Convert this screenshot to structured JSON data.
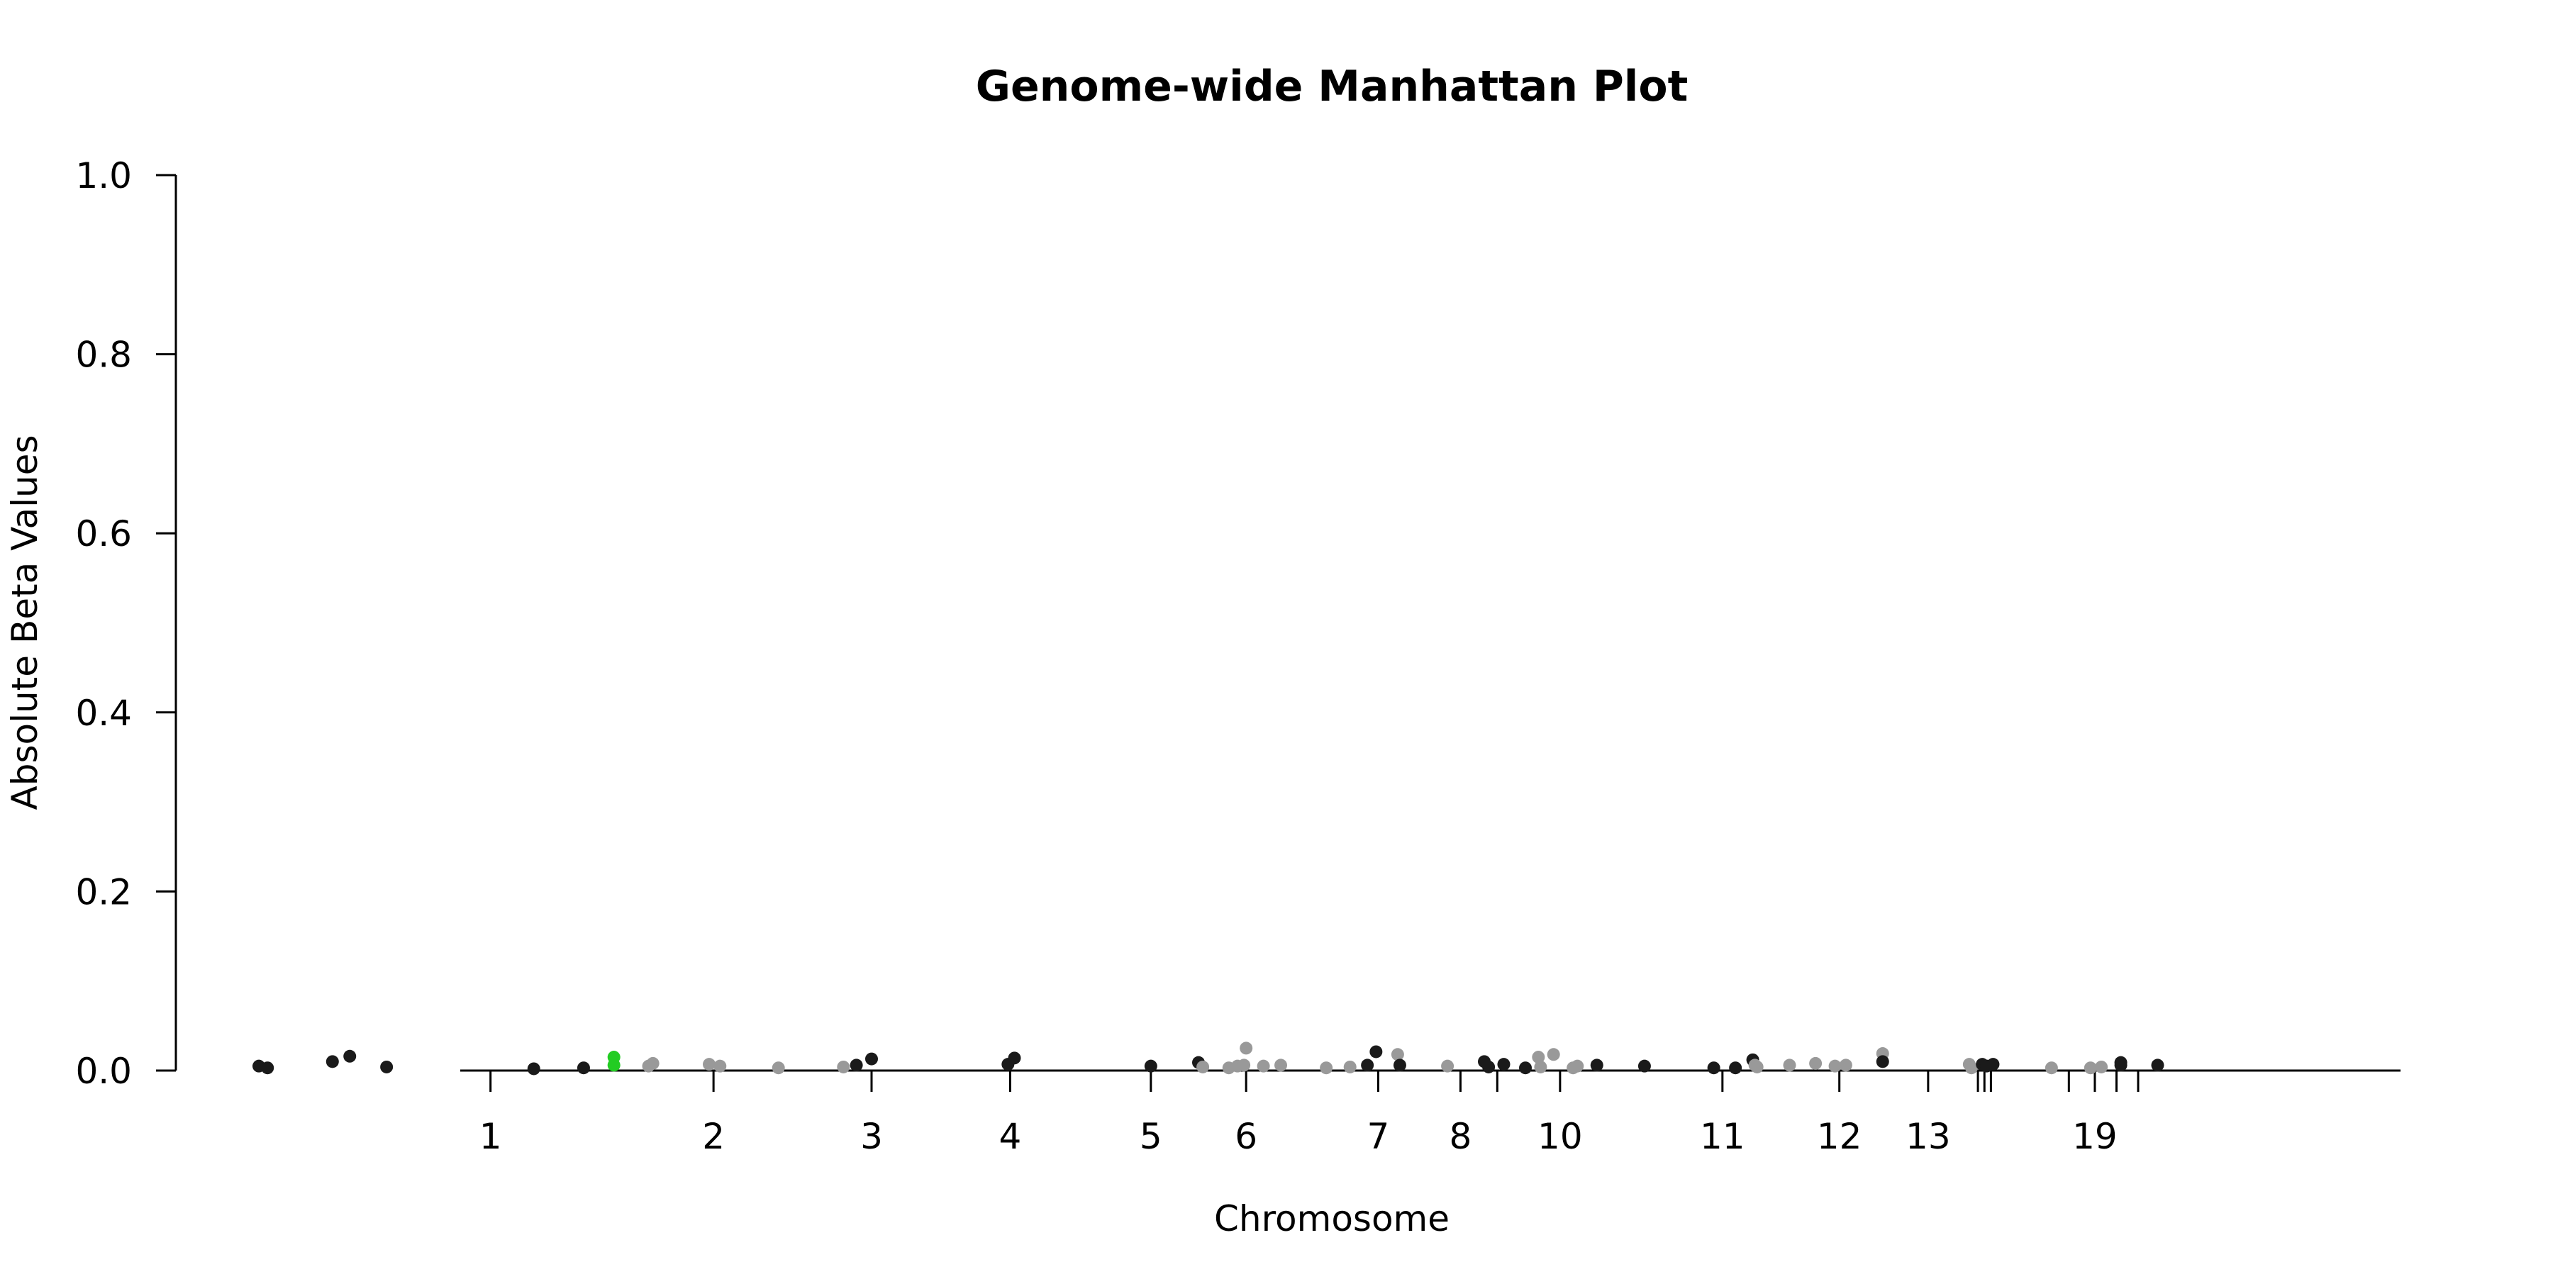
{
  "chart_data": {
    "type": "scatter",
    "title": "Genome-wide Manhattan Plot",
    "xlabel": "Chromosome",
    "ylabel": "Absolute Beta Values",
    "ylim": [
      0,
      1
    ],
    "yticks": [
      "0.0",
      "0.2",
      "0.4",
      "0.6",
      "0.8",
      "1.0"
    ],
    "xlim": [
      0,
      100
    ],
    "grid": false,
    "legend": "none",
    "xticks": [
      {
        "pos": 10.7,
        "label": "1"
      },
      {
        "pos": 21.0,
        "label": "2"
      },
      {
        "pos": 28.3,
        "label": "3"
      },
      {
        "pos": 34.7,
        "label": "4"
      },
      {
        "pos": 41.2,
        "label": "5"
      },
      {
        "pos": 45.6,
        "label": "6"
      },
      {
        "pos": 51.7,
        "label": "7"
      },
      {
        "pos": 55.5,
        "label": "8"
      },
      {
        "pos": 57.2,
        "label": ""
      },
      {
        "pos": 60.1,
        "label": "10"
      },
      {
        "pos": 67.6,
        "label": "11"
      },
      {
        "pos": 73.0,
        "label": "12"
      },
      {
        "pos": 77.1,
        "label": "13"
      },
      {
        "pos": 79.4,
        "label": ""
      },
      {
        "pos": 79.7,
        "label": ""
      },
      {
        "pos": 80.0,
        "label": ""
      },
      {
        "pos": 83.6,
        "label": ""
      },
      {
        "pos": 84.8,
        "label": "19"
      },
      {
        "pos": 85.8,
        "label": ""
      },
      {
        "pos": 86.8,
        "label": ""
      }
    ],
    "colors": {
      "dark": "#1a1a1a",
      "light": "#999999",
      "highlight": "#22cc22"
    },
    "points": [
      {
        "x": 0.0,
        "y": 0.005,
        "g": "dark"
      },
      {
        "x": 0.4,
        "y": 0.003,
        "g": "dark"
      },
      {
        "x": 3.4,
        "y": 0.01,
        "g": "dark"
      },
      {
        "x": 4.2,
        "y": 0.016,
        "g": "dark"
      },
      {
        "x": 5.9,
        "y": 0.004,
        "g": "dark"
      },
      {
        "x": 12.7,
        "y": 0.002,
        "g": "dark"
      },
      {
        "x": 15.0,
        "y": 0.003,
        "g": "dark"
      },
      {
        "x": 16.4,
        "y": 0.015,
        "g": "highlight"
      },
      {
        "x": 16.4,
        "y": 0.006,
        "g": "highlight"
      },
      {
        "x": 18.0,
        "y": 0.005,
        "g": "light"
      },
      {
        "x": 18.2,
        "y": 0.008,
        "g": "light"
      },
      {
        "x": 20.8,
        "y": 0.007,
        "g": "light"
      },
      {
        "x": 21.3,
        "y": 0.005,
        "g": "light"
      },
      {
        "x": 24.0,
        "y": 0.003,
        "g": "light"
      },
      {
        "x": 27.0,
        "y": 0.004,
        "g": "light"
      },
      {
        "x": 27.6,
        "y": 0.006,
        "g": "dark"
      },
      {
        "x": 28.3,
        "y": 0.013,
        "g": "dark"
      },
      {
        "x": 34.6,
        "y": 0.007,
        "g": "dark"
      },
      {
        "x": 34.9,
        "y": 0.014,
        "g": "dark"
      },
      {
        "x": 41.2,
        "y": 0.005,
        "g": "dark"
      },
      {
        "x": 43.4,
        "y": 0.009,
        "g": "dark"
      },
      {
        "x": 43.6,
        "y": 0.004,
        "g": "light"
      },
      {
        "x": 44.8,
        "y": 0.003,
        "g": "light"
      },
      {
        "x": 45.2,
        "y": 0.005,
        "g": "light"
      },
      {
        "x": 45.5,
        "y": 0.006,
        "g": "light"
      },
      {
        "x": 45.6,
        "y": 0.025,
        "g": "light"
      },
      {
        "x": 46.4,
        "y": 0.005,
        "g": "light"
      },
      {
        "x": 47.2,
        "y": 0.006,
        "g": "light"
      },
      {
        "x": 49.3,
        "y": 0.003,
        "g": "light"
      },
      {
        "x": 50.4,
        "y": 0.004,
        "g": "light"
      },
      {
        "x": 51.2,
        "y": 0.006,
        "g": "dark"
      },
      {
        "x": 51.6,
        "y": 0.021,
        "g": "dark"
      },
      {
        "x": 52.6,
        "y": 0.018,
        "g": "light"
      },
      {
        "x": 52.7,
        "y": 0.006,
        "g": "dark"
      },
      {
        "x": 54.9,
        "y": 0.005,
        "g": "light"
      },
      {
        "x": 56.6,
        "y": 0.01,
        "g": "dark"
      },
      {
        "x": 56.8,
        "y": 0.004,
        "g": "dark"
      },
      {
        "x": 57.5,
        "y": 0.007,
        "g": "dark"
      },
      {
        "x": 58.5,
        "y": 0.003,
        "g": "dark"
      },
      {
        "x": 59.1,
        "y": 0.015,
        "g": "light"
      },
      {
        "x": 59.2,
        "y": 0.004,
        "g": "light"
      },
      {
        "x": 59.8,
        "y": 0.018,
        "g": "light"
      },
      {
        "x": 60.7,
        "y": 0.003,
        "g": "light"
      },
      {
        "x": 60.9,
        "y": 0.005,
        "g": "light"
      },
      {
        "x": 61.8,
        "y": 0.006,
        "g": "dark"
      },
      {
        "x": 64.0,
        "y": 0.005,
        "g": "dark"
      },
      {
        "x": 67.2,
        "y": 0.003,
        "g": "dark"
      },
      {
        "x": 68.2,
        "y": 0.003,
        "g": "dark"
      },
      {
        "x": 69.0,
        "y": 0.012,
        "g": "dark"
      },
      {
        "x": 69.1,
        "y": 0.006,
        "g": "light"
      },
      {
        "x": 69.2,
        "y": 0.004,
        "g": "light"
      },
      {
        "x": 70.7,
        "y": 0.006,
        "g": "light"
      },
      {
        "x": 71.9,
        "y": 0.008,
        "g": "light"
      },
      {
        "x": 72.8,
        "y": 0.005,
        "g": "light"
      },
      {
        "x": 73.3,
        "y": 0.006,
        "g": "light"
      },
      {
        "x": 75.0,
        "y": 0.019,
        "g": "light"
      },
      {
        "x": 75.0,
        "y": 0.01,
        "g": "dark"
      },
      {
        "x": 79.0,
        "y": 0.007,
        "g": "light"
      },
      {
        "x": 79.1,
        "y": 0.003,
        "g": "light"
      },
      {
        "x": 79.6,
        "y": 0.007,
        "g": "dark"
      },
      {
        "x": 79.8,
        "y": 0.005,
        "g": "dark"
      },
      {
        "x": 80.1,
        "y": 0.007,
        "g": "dark"
      },
      {
        "x": 82.8,
        "y": 0.003,
        "g": "light"
      },
      {
        "x": 84.6,
        "y": 0.003,
        "g": "light"
      },
      {
        "x": 85.1,
        "y": 0.004,
        "g": "light"
      },
      {
        "x": 86.0,
        "y": 0.009,
        "g": "dark"
      },
      {
        "x": 86.0,
        "y": 0.006,
        "g": "dark"
      },
      {
        "x": 87.7,
        "y": 0.006,
        "g": "dark"
      }
    ]
  }
}
